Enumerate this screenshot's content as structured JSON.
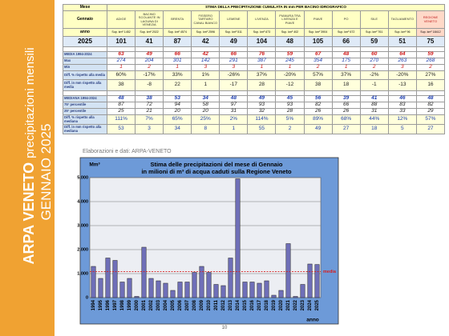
{
  "sidebar": {
    "brand": "ARPA VENETO",
    "subject": "precipitazioni mensili",
    "period": "GENNAIO 2025"
  },
  "table": {
    "corner": "Mese",
    "title": "STIMA DELLA PRECIPITAZIONE CUMULATA IN mm PER BACINO IDROGRAFICO",
    "month": "Gennaio",
    "year_label": "anno",
    "basins": [
      "ADIGE",
      "BACINO SCOLANTE IN LAGUNA DI VENEZIA",
      "BRENTA",
      "FISSERO TARTARO CANAL BIANCO",
      "LEMENE",
      "LIVENZA",
      "PIANURA TRA LIVENZA E PIAVE",
      "PIAVE",
      "PO",
      "SILE",
      "TAGLIAMENTO",
      "REGIONE VENETO"
    ],
    "areas": [
      "Sup. km² 1452",
      "Sup. km² 2022",
      "Sup. km² 4574",
      "Sup. km² 2596",
      "Sup. km² 511",
      "Sup. km² 673",
      "Sup. km² 402",
      "Sup. km² 3904",
      "Sup. km² 672",
      "Sup. km² 761",
      "Sup. km² 96",
      "Sup. km² 18412"
    ],
    "rows": [
      {
        "label": "2025",
        "values": [
          101,
          41,
          87,
          42,
          49,
          104,
          48,
          105,
          66,
          59,
          51,
          75
        ]
      },
      {
        "label": "MEDIA 1994-2024",
        "values": [
          63,
          49,
          66,
          42,
          66,
          76,
          59,
          67,
          48,
          60,
          64,
          59
        ]
      },
      {
        "label": "Max",
        "values": [
          274,
          204,
          301,
          142,
          291,
          387,
          245,
          354,
          175,
          270,
          263,
          268
        ]
      },
      {
        "label": "Min",
        "values": [
          1,
          2,
          1,
          3,
          3,
          1,
          1,
          2,
          1,
          2,
          3,
          2
        ]
      },
      {
        "label": "Diff. % rispetto alla media",
        "values": [
          "60%",
          "-17%",
          "33%",
          "1%",
          "-26%",
          "37%",
          "-20%",
          "57%",
          "37%",
          "-2%",
          "-20%",
          "27%"
        ]
      },
      {
        "label": "Diff. in mm rispetto alla media",
        "values": [
          38,
          -8,
          22,
          1,
          -17,
          28,
          -12,
          38,
          18,
          -1,
          -13,
          16
        ]
      },
      {
        "label": "MEDIANA 1994-2024",
        "values": [
          48,
          38,
          53,
          34,
          48,
          49,
          45,
          56,
          39,
          41,
          46,
          48
        ]
      },
      {
        "label": "75° percentile",
        "values": [
          87,
          72,
          94,
          58,
          97,
          93,
          93,
          82,
          66,
          88,
          83,
          82
        ]
      },
      {
        "label": "25° percentile",
        "values": [
          25,
          21,
          20,
          20,
          31,
          32,
          28,
          26,
          26,
          31,
          33,
          29
        ]
      },
      {
        "label": "Diff. % rispetto alla mediana",
        "values": [
          "111%",
          "7%",
          "65%",
          "25%",
          "2%",
          "114%",
          "5%",
          "89%",
          "68%",
          "44%",
          "12%",
          "57%"
        ]
      },
      {
        "label": "Diff. in mm rispetto alla mediana",
        "values": [
          53,
          3,
          34,
          8,
          1,
          55,
          2,
          49,
          27,
          18,
          5,
          27
        ]
      }
    ]
  },
  "source": "Elaborazioni e dati: ARPA-VENETO",
  "chart_data": {
    "type": "bar",
    "title": "Stima delle precipitazioni del mese di Gennaio",
    "subtitle": "in milioni di m³ di acqua caduti sulla Regione Veneto",
    "y_label": "Mm³",
    "x_label": "anno",
    "categories": [
      "1994",
      "1995",
      "1996",
      "1997",
      "1998",
      "1999",
      "2000",
      "2001",
      "2002",
      "2003",
      "2004",
      "2005",
      "2006",
      "2007",
      "2008",
      "2009",
      "2010",
      "2011",
      "2012",
      "2013",
      "2014",
      "2015",
      "2016",
      "2017",
      "2018",
      "2019",
      "2020",
      "2021",
      "2022",
      "2023",
      "2024",
      "2025"
    ],
    "values": [
      1300,
      800,
      1650,
      1550,
      650,
      800,
      50,
      2100,
      800,
      700,
      600,
      300,
      650,
      650,
      1050,
      1300,
      1050,
      550,
      500,
      1650,
      4950,
      650,
      650,
      600,
      700,
      100,
      300,
      2250,
      50,
      550,
      1400,
      1380
    ],
    "color": "#6f6fb8",
    "ylim": [
      0,
      5000
    ],
    "yticks": [
      0,
      {
        "value": 1000,
        "label": "1,000"
      },
      {
        "value": 2000,
        "label": "2,000"
      },
      {
        "value": 3000,
        "label": "3,000"
      },
      {
        "value": 4000,
        "label": "4,000"
      },
      {
        "value": 5000,
        "label": "5,000"
      }
    ],
    "grid": true,
    "reference_line": {
      "value": 1086,
      "label": "media",
      "color": "#d62020"
    }
  },
  "page_number": "10"
}
